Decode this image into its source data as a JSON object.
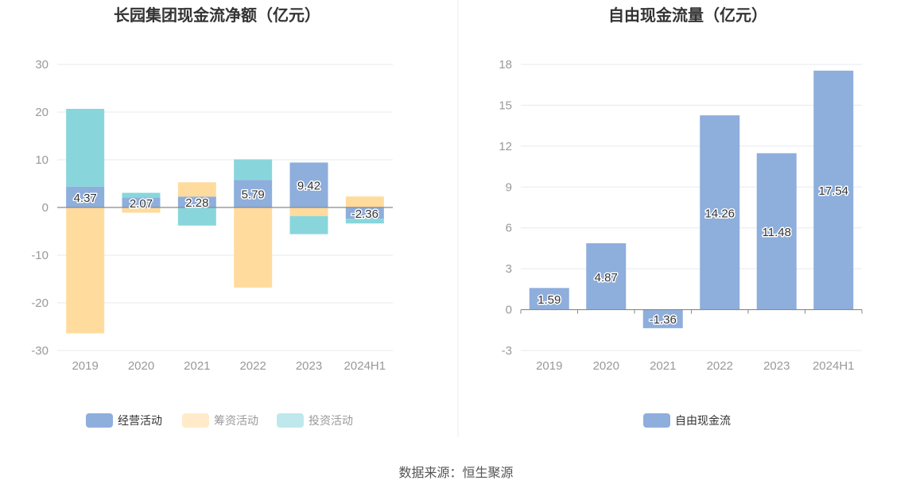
{
  "chart_data": [
    {
      "type": "bar",
      "stacked": true,
      "title": "长园集团现金流净额（亿元）",
      "categories": [
        "2019",
        "2020",
        "2021",
        "2022",
        "2023",
        "2024H1"
      ],
      "ylim": [
        -30,
        30
      ],
      "yticks": [
        -30,
        -20,
        -10,
        0,
        10,
        20,
        30
      ],
      "series": [
        {
          "name": "经营活动",
          "color": "#8eaedc",
          "values": [
            4.37,
            2.07,
            2.28,
            5.79,
            9.42,
            -2.36
          ],
          "labeled": true
        },
        {
          "name": "筹资活动",
          "color": "#ffdb9e",
          "values": [
            -26.4,
            -1.1,
            3.0,
            -16.8,
            -1.8,
            2.3
          ],
          "labeled": false
        },
        {
          "name": "投资活动",
          "color": "#88d6dc",
          "values": [
            16.3,
            1.0,
            -3.8,
            4.3,
            -3.8,
            -1.0
          ],
          "labeled": false
        }
      ],
      "legend": {
        "position": "bottom",
        "items": [
          "经营活动",
          "筹资活动",
          "投资活动"
        ],
        "dimmed": [
          "筹资活动",
          "投资活动"
        ]
      }
    },
    {
      "type": "bar",
      "title": "自由现金流量（亿元）",
      "categories": [
        "2019",
        "2020",
        "2021",
        "2022",
        "2023",
        "2024H1"
      ],
      "ylim": [
        -3,
        18
      ],
      "yticks": [
        -3,
        0,
        3,
        6,
        9,
        12,
        15,
        18
      ],
      "series": [
        {
          "name": "自由现金流",
          "color": "#8eaedc",
          "values": [
            1.59,
            4.87,
            -1.36,
            14.26,
            11.48,
            17.54
          ],
          "labeled": true
        }
      ],
      "legend": {
        "position": "bottom",
        "items": [
          "自由现金流"
        ],
        "dimmed": []
      }
    }
  ],
  "footer": {
    "source": "数据来源：恒生聚源"
  }
}
